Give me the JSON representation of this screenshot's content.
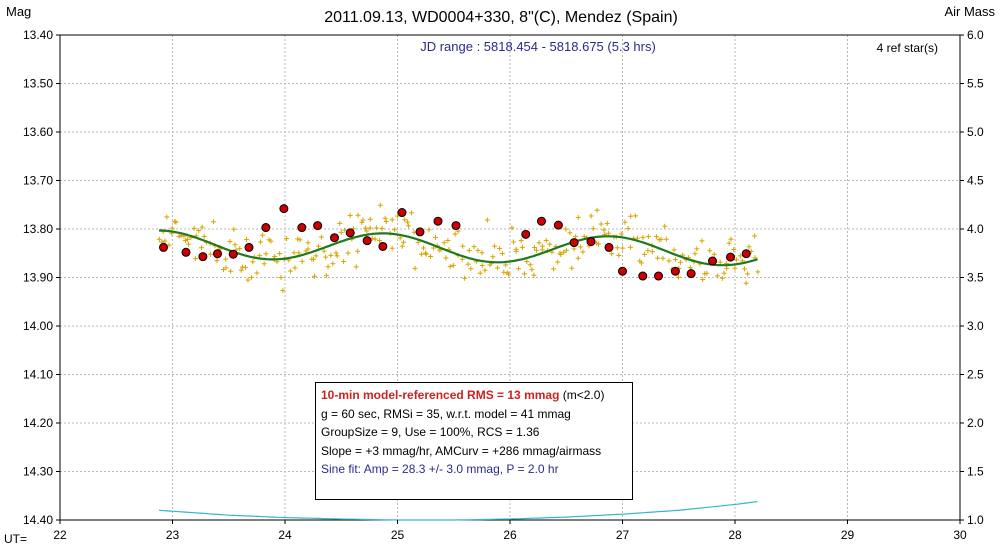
{
  "chart_data": {
    "type": "scatter",
    "title": "2011.09.13, WD0004+330, 8\"(C), Mendez (Spain)",
    "ylabel_left": "Mag",
    "ylabel_right": "Air Mass",
    "xlabel": "UT=",
    "jd_range": "JD range : 5818.454 - 5818.675 (5.3 hrs)",
    "ref_stars": "4 ref star(s)",
    "xlim": [
      22,
      30
    ],
    "ylim_mag": [
      13.4,
      14.4
    ],
    "ylim_airmass": [
      6.0,
      1.0
    ],
    "y_inverted": true,
    "grid": true,
    "x_ticks": [
      "22",
      "23",
      "24",
      "25",
      "26",
      "27",
      "28",
      "29",
      "30"
    ],
    "y_ticks_left": [
      "13.40",
      "13.50",
      "13.60",
      "13.70",
      "13.80",
      "13.90",
      "14.00",
      "14.10",
      "14.20",
      "14.30",
      "14.40"
    ],
    "y_ticks_right": [
      "6.0",
      "5.5",
      "5.0",
      "4.5",
      "4.0",
      "3.5",
      "3.0",
      "2.5",
      "2.0",
      "1.5",
      "1.0"
    ],
    "binned_points": {
      "name": "",
      "x": [
        22.92,
        23.12,
        23.27,
        23.4,
        23.54,
        23.68,
        23.83,
        23.99,
        24.15,
        24.29,
        24.44,
        24.58,
        24.73,
        24.87,
        25.04,
        25.2,
        25.36,
        25.52,
        26.14,
        26.28,
        26.43,
        26.57,
        26.72,
        26.88,
        27.0,
        27.18,
        27.32,
        27.47,
        27.61,
        27.8,
        27.96,
        28.1
      ],
      "y": [
        13.838,
        13.848,
        13.857,
        13.851,
        13.852,
        13.838,
        13.797,
        13.758,
        13.797,
        13.793,
        13.818,
        13.808,
        13.824,
        13.836,
        13.766,
        13.806,
        13.784,
        13.793,
        13.811,
        13.784,
        13.792,
        13.828,
        13.826,
        13.838,
        13.887,
        13.897,
        13.897,
        13.887,
        13.892,
        13.866,
        13.858,
        13.851
      ]
    },
    "sine_fit": {
      "amp_mag": 0.0283,
      "period_hr": 2.0,
      "mean_mag": 13.8393,
      "t0": 23.38,
      "slope_mag_per_hr": 0.003,
      "airmass_curv": 0.286,
      "x_start": 22.88,
      "x_end": 28.2
    },
    "airmass_curve": {
      "x": [
        22.88,
        23.5,
        24.0,
        24.5,
        25.0,
        25.5,
        26.0,
        26.5,
        27.0,
        27.5,
        28.0,
        28.2
      ],
      "airmass": [
        1.1,
        1.05,
        1.025,
        1.01,
        1.0,
        1.0,
        1.01,
        1.03,
        1.06,
        1.1,
        1.16,
        1.19
      ]
    },
    "colors": {
      "binned_fill": "#cc0000",
      "binned_edge": "#000000",
      "raw_points": "#d9a400",
      "fit_line": "#1f7a1f",
      "airmass_line": "#33b5cc",
      "grid": "#b8b8b8"
    }
  },
  "stats": {
    "line1_strong": "10-min model-referenced RMS = 13 mmag",
    "line1_tail": " (m<2.0)",
    "line2": "g = 60 sec, RMSi = 35, w.r.t. model = 41 mmag",
    "line3": "GroupSize = 9, Use = 100%, RCS = 1.36",
    "line4": "Slope = +3 mmag/hr, AMCurv = +286 mmag/airmass",
    "line5": "Sine fit: Amp = 28.3 +/- 3.0 mmag, P = 2.0 hr"
  }
}
